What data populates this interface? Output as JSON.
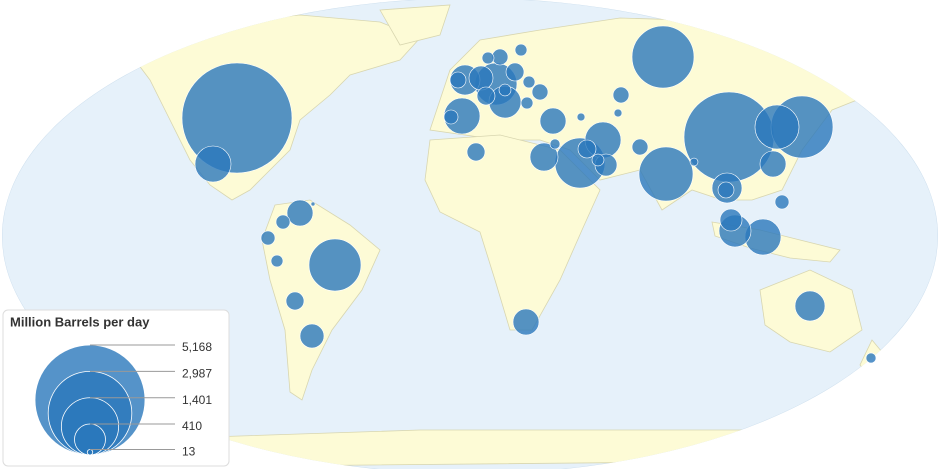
{
  "legend": {
    "title": "Million Barrels per day",
    "ticks": [
      {
        "value": 5168,
        "label": "5,168"
      },
      {
        "value": 2987,
        "label": "2,987"
      },
      {
        "value": 1401,
        "label": "1,401"
      },
      {
        "value": 410,
        "label": "410"
      },
      {
        "value": 13,
        "label": "13"
      }
    ]
  },
  "bubbles": {
    "values": [
      5168,
      553,
      3459,
      1641,
      827,
      1641,
      1245,
      1155,
      1068,
      553,
      753,
      553,
      384,
      437,
      553,
      384,
      384,
      437,
      207,
      289,
      84,
      109,
      335,
      289,
      289,
      246,
      289,
      84,
      84,
      61,
      138,
      109,
      207,
      138,
      61,
      138,
      109,
      109,
      138,
      61,
      109,
      61,
      246,
      138,
      109,
      84,
      61,
      61,
      43,
      27,
      27,
      7,
      43,
      27,
      61
    ]
  }
}
